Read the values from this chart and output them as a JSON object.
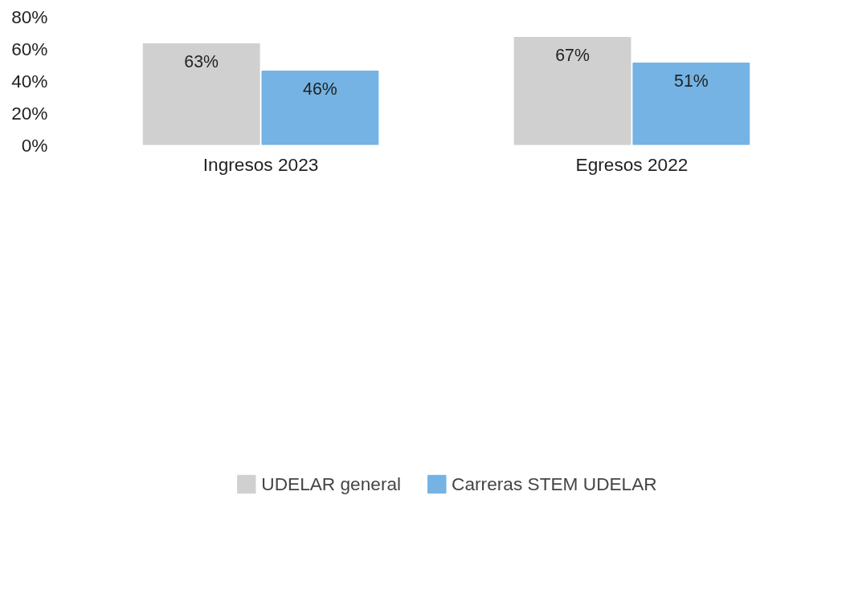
{
  "chart_data": {
    "type": "bar",
    "categories": [
      "Ingresos 2023",
      "Egresos 2022"
    ],
    "series": [
      {
        "name": "UDELAR general",
        "color": "#d0d0d0",
        "values": [
          63,
          67
        ],
        "value_labels": [
          "63%",
          "67%"
        ]
      },
      {
        "name": "Carreras STEM UDELAR",
        "color": "#74b3e3",
        "values": [
          46,
          51
        ],
        "value_labels": [
          "46%",
          "51%"
        ]
      }
    ],
    "ylim": [
      0,
      80
    ],
    "yticks": [
      {
        "value": 0,
        "label": "0%"
      },
      {
        "value": 20,
        "label": "20%"
      },
      {
        "value": 40,
        "label": "40%"
      },
      {
        "value": 60,
        "label": "60%"
      },
      {
        "value": 80,
        "label": "80%"
      }
    ],
    "grid": false,
    "legend": "bottom"
  }
}
